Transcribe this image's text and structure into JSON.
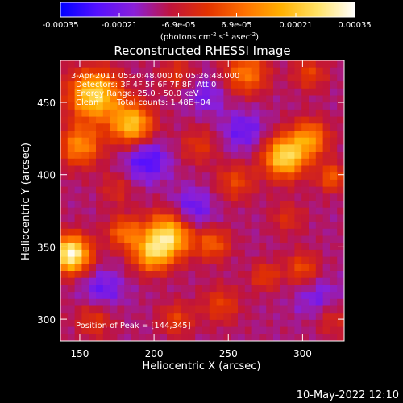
{
  "chart_data": {
    "type": "heatmap",
    "title": "Reconstructed RHESSI Image",
    "xlabel": "Heliocentric X (arcsec)",
    "ylabel": "Heliocentric Y (arcsec)",
    "xlim": [
      137,
      328
    ],
    "ylim": [
      285,
      479
    ],
    "x_ticks": [
      150,
      200,
      250,
      300
    ],
    "y_ticks": [
      300,
      350,
      400,
      450
    ],
    "x_tick_labels": [
      "150",
      "200",
      "250",
      "300"
    ],
    "y_tick_labels": [
      "300",
      "350",
      "400",
      "450"
    ],
    "grid": false,
    "colorbar": {
      "placement": "top",
      "range": [
        -0.00035,
        0.00035
      ],
      "tick_values": [
        -0.00035,
        -0.00021,
        -6.9e-05,
        6.9e-05,
        0.00021,
        0.00035
      ],
      "tick_labels": [
        "-0.00035",
        "-0.00021",
        "-6.9e-05",
        "6.9e-05",
        "0.00021",
        "0.00035"
      ],
      "unit_label": {
        "prefix": "(photons cm",
        "sup1": "-2",
        "mid1": " s",
        "sup2": "-1",
        "mid2": " asec",
        "sup3": "-2",
        "suffix": ")"
      },
      "colormap": [
        "#0000ff",
        "#5510ff",
        "#8a1fd9",
        "#c0143c",
        "#e23200",
        "#ff7000",
        "#ffb000",
        "#ffe266",
        "#ffffff"
      ]
    },
    "annotations": {
      "time_range": "3-Apr-2011 05:20:48.000 to 05:26:48.000",
      "detectors": "Detectors: 3F 4F 5F 6F 7F 8F, Att 0",
      "energy_range": "Energy Range: 25.0 - 50.0 keV",
      "clean_label": "Clean",
      "total_counts": "Total counts: 1.48E+04",
      "peak_position": "Position of Peak = [144,345]"
    },
    "peak": [
      144,
      345
    ],
    "grid_cells": 40,
    "sources": [
      {
        "x": 144,
        "y": 345,
        "amp": 1.05,
        "sigma": 9
      },
      {
        "x": 160,
        "y": 455,
        "amp": 0.85,
        "sigma": 12
      },
      {
        "x": 185,
        "y": 435,
        "amp": 0.75,
        "sigma": 10
      },
      {
        "x": 150,
        "y": 420,
        "amp": 0.55,
        "sigma": 10
      },
      {
        "x": 210,
        "y": 358,
        "amp": 0.85,
        "sigma": 11
      },
      {
        "x": 198,
        "y": 345,
        "amp": 0.6,
        "sigma": 9
      },
      {
        "x": 180,
        "y": 360,
        "amp": 0.45,
        "sigma": 8
      },
      {
        "x": 240,
        "y": 352,
        "amp": 0.4,
        "sigma": 8
      },
      {
        "x": 288,
        "y": 412,
        "amp": 0.85,
        "sigma": 10
      },
      {
        "x": 305,
        "y": 425,
        "amp": 0.55,
        "sigma": 9
      },
      {
        "x": 320,
        "y": 398,
        "amp": 0.4,
        "sigma": 7
      },
      {
        "x": 262,
        "y": 470,
        "amp": 0.5,
        "sigma": 10
      },
      {
        "x": 305,
        "y": 470,
        "amp": 0.3,
        "sigma": 8
      },
      {
        "x": 300,
        "y": 335,
        "amp": 0.35,
        "sigma": 8
      },
      {
        "x": 275,
        "y": 330,
        "amp": 0.3,
        "sigma": 7
      },
      {
        "x": 245,
        "y": 310,
        "amp": 0.3,
        "sigma": 9
      },
      {
        "x": 160,
        "y": 300,
        "amp": 0.28,
        "sigma": 9
      },
      {
        "x": 215,
        "y": 300,
        "amp": 0.3,
        "sigma": 8
      },
      {
        "x": 255,
        "y": 395,
        "amp": 0.32,
        "sigma": 9
      },
      {
        "x": 230,
        "y": 420,
        "amp": 0.25,
        "sigma": 9
      },
      {
        "x": 215,
        "y": 470,
        "amp": 0.25,
        "sigma": 8
      },
      {
        "x": 320,
        "y": 300,
        "amp": 0.22,
        "sigma": 8
      },
      {
        "x": 175,
        "y": 390,
        "amp": 0.2,
        "sigma": 8
      },
      {
        "x": 290,
        "y": 370,
        "amp": 0.22,
        "sigma": 8
      },
      {
        "x": 225,
        "y": 375,
        "amp": -0.3,
        "sigma": 10
      },
      {
        "x": 165,
        "y": 320,
        "amp": -0.25,
        "sigma": 10
      },
      {
        "x": 195,
        "y": 410,
        "amp": -0.35,
        "sigma": 10
      },
      {
        "x": 260,
        "y": 430,
        "amp": -0.25,
        "sigma": 10
      },
      {
        "x": 310,
        "y": 315,
        "amp": -0.2,
        "sigma": 10
      },
      {
        "x": 235,
        "y": 455,
        "amp": -0.2,
        "sigma": 9
      }
    ]
  },
  "footer": {
    "timestamp": "10-May-2022 12:10"
  }
}
